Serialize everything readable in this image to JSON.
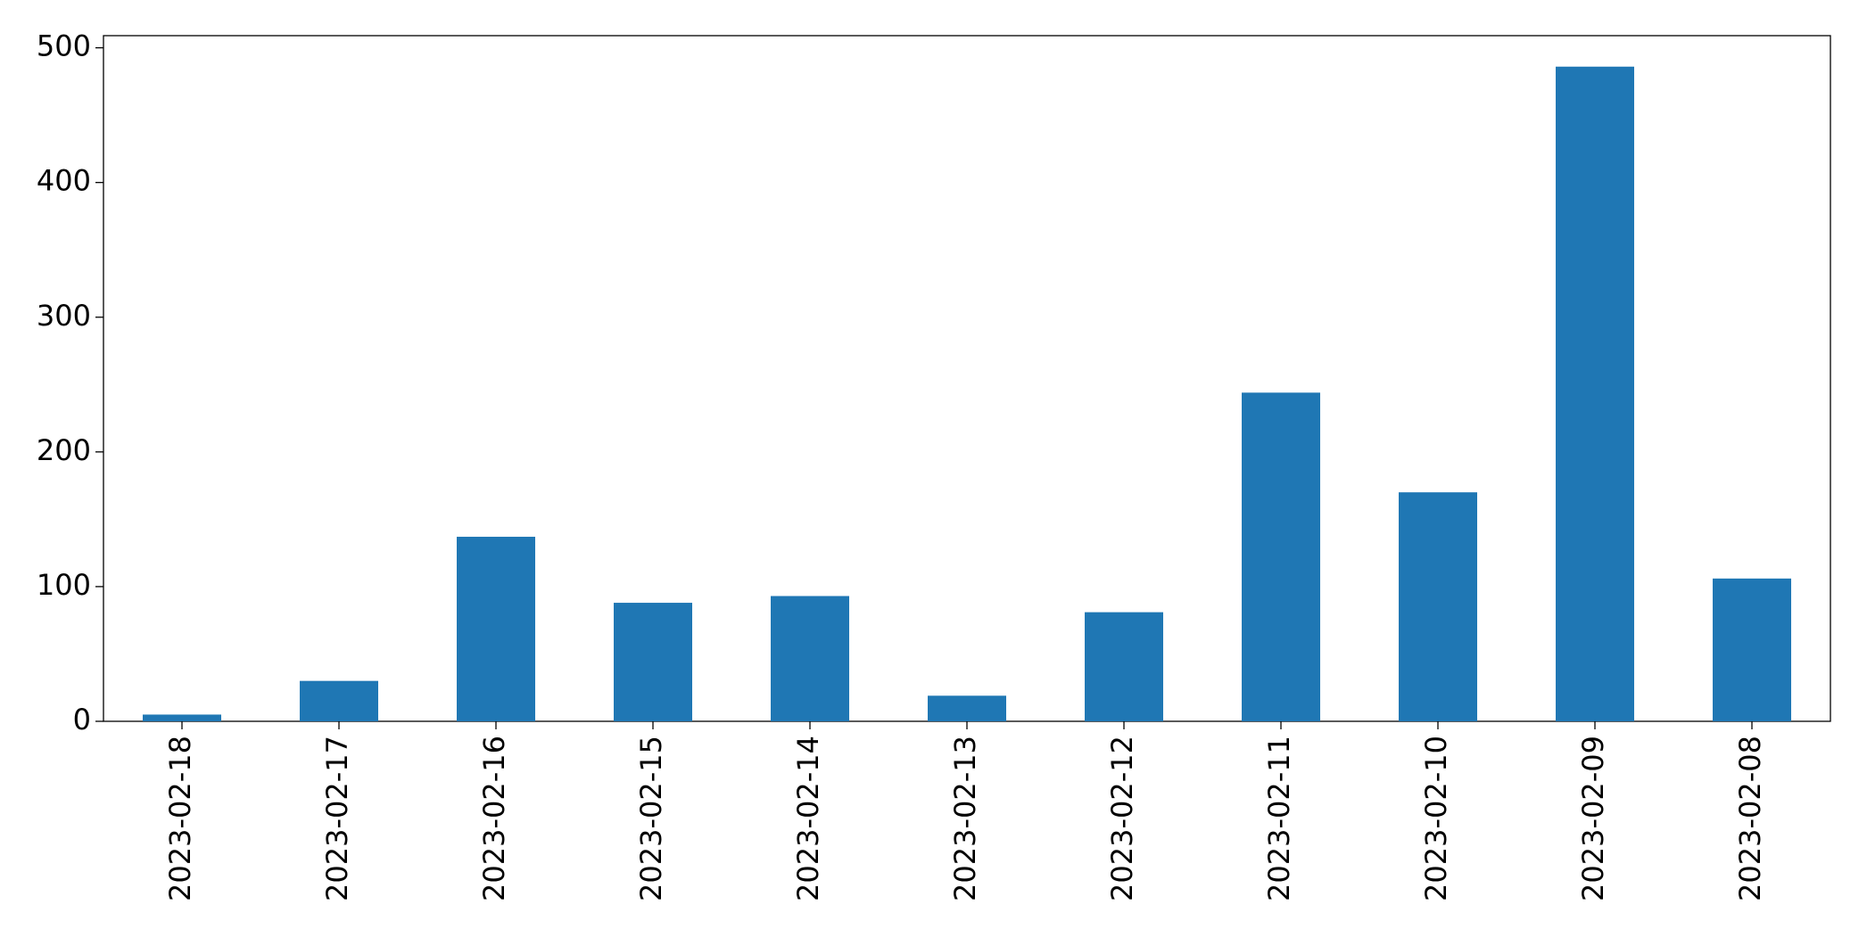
{
  "chart_data": {
    "type": "bar",
    "categories": [
      "2023-02-18",
      "2023-02-17",
      "2023-02-16",
      "2023-02-15",
      "2023-02-14",
      "2023-02-13",
      "2023-02-12",
      "2023-02-11",
      "2023-02-10",
      "2023-02-09",
      "2023-02-08"
    ],
    "values": [
      5,
      30,
      137,
      88,
      93,
      19,
      81,
      244,
      170,
      486,
      106
    ],
    "color": "#1f77b4",
    "ylim": [
      0,
      509
    ],
    "yticks": [
      0,
      100,
      200,
      300,
      400,
      500
    ],
    "grid": false
  }
}
